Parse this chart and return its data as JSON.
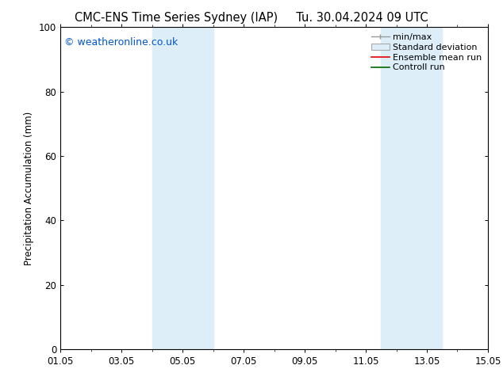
{
  "title_left": "CMC-ENS Time Series Sydney (IAP)",
  "title_right": "Tu. 30.04.2024 09 UTC",
  "ylabel": "Precipitation Accumulation (mm)",
  "watermark": "© weatheronline.co.uk",
  "watermark_color": "#0055cc",
  "ylim": [
    0,
    100
  ],
  "xlim_start": 0,
  "xlim_end": 14,
  "xtick_positions": [
    0,
    2,
    4,
    6,
    8,
    10,
    12,
    14
  ],
  "xtick_labels": [
    "01.05",
    "03.05",
    "05.05",
    "07.05",
    "09.05",
    "11.05",
    "13.05",
    "15.05"
  ],
  "ytick_positions": [
    0,
    20,
    40,
    60,
    80,
    100
  ],
  "shade_bands": [
    {
      "x_start": 3.0,
      "x_end": 5.0
    },
    {
      "x_start": 10.5,
      "x_end": 12.5
    }
  ],
  "shade_color": "#ddeef8",
  "bg_color": "#ffffff",
  "title_fontsize": 10.5,
  "label_fontsize": 8.5,
  "tick_fontsize": 8.5,
  "watermark_fontsize": 9,
  "legend_fontsize": 8
}
